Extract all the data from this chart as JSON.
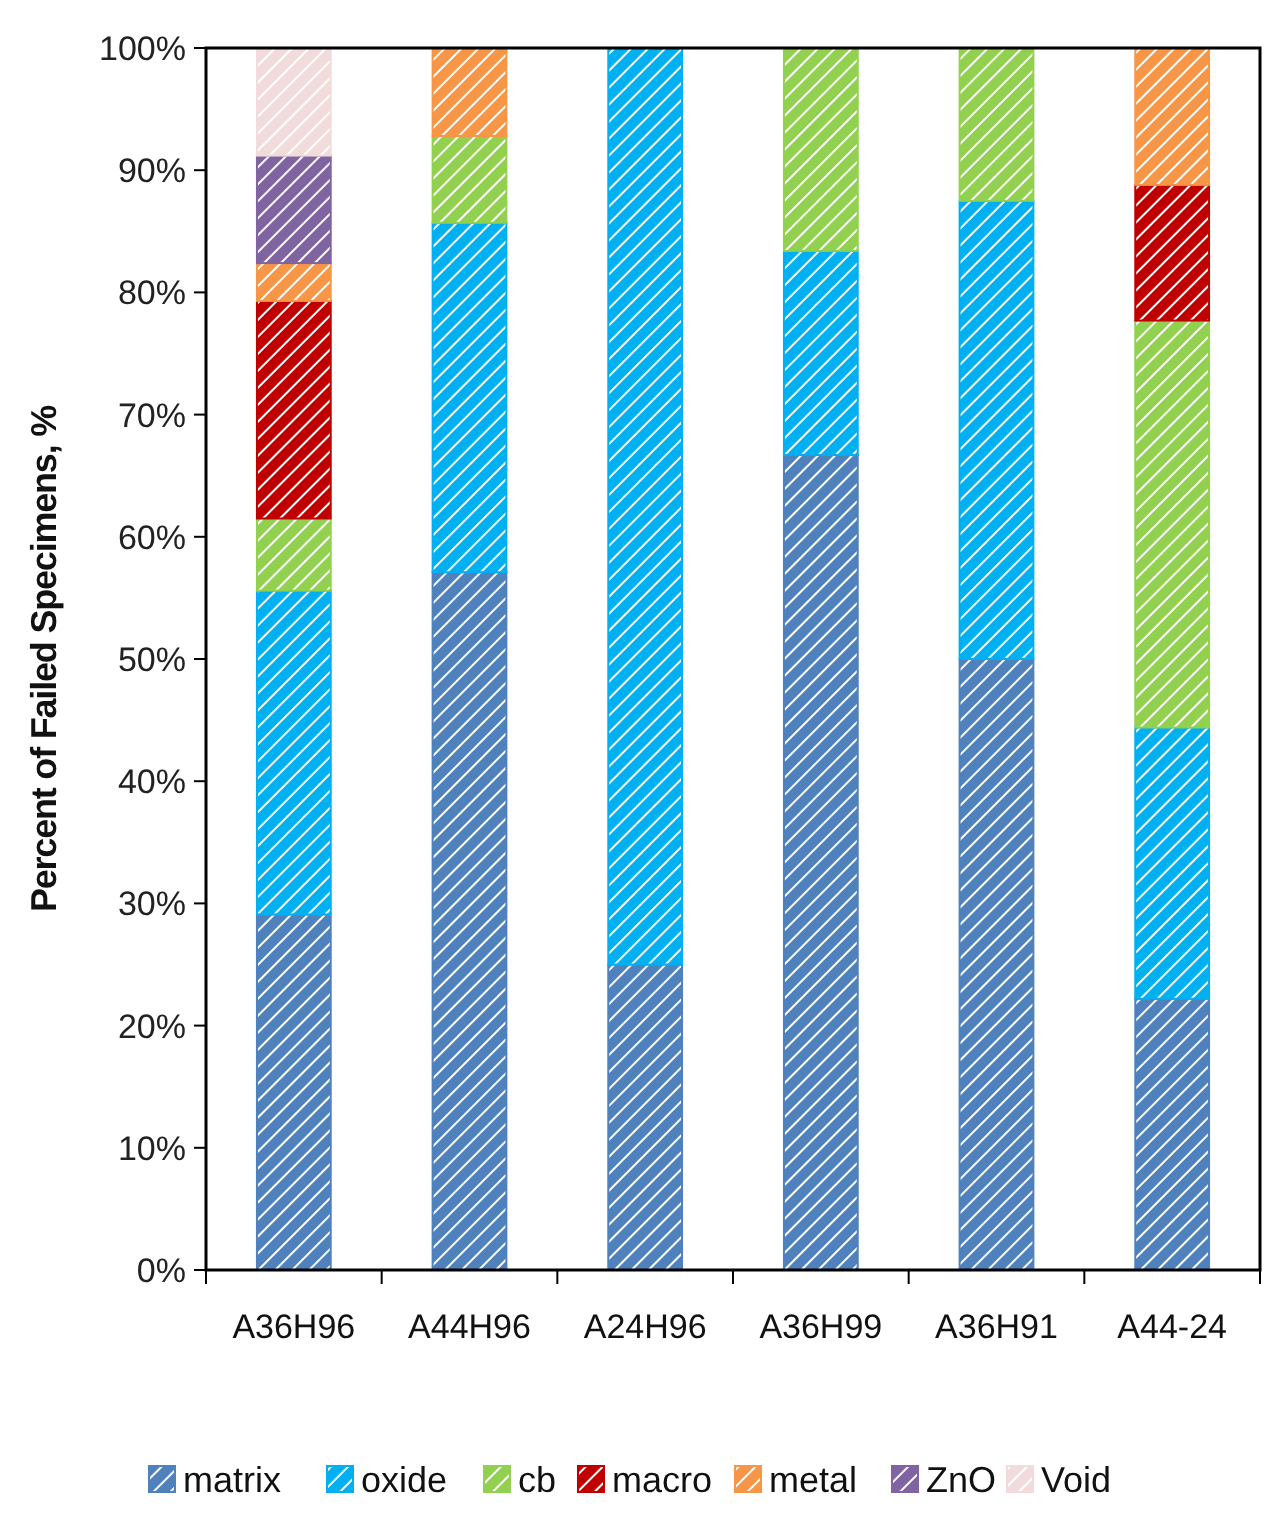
{
  "chart_data": {
    "type": "bar",
    "stacked": true,
    "ylabel": "Percent of Failed Specimens, %",
    "categories": [
      "A36H96",
      "A44H96",
      "A24H96",
      "A36H99",
      "A36H91",
      "A44-24"
    ],
    "series": [
      {
        "name": "matrix",
        "color": "#4f81bd",
        "values": [
          29.1,
          57.1,
          25,
          66.7,
          50,
          22.2
        ]
      },
      {
        "name": "oxide",
        "color": "#00b0f0",
        "values": [
          26.5,
          28.6,
          75,
          16.7,
          37.5,
          22.2
        ]
      },
      {
        "name": "cb",
        "color": "#92d050",
        "values": [
          5.9,
          7.1,
          null,
          16.6,
          12.5,
          33.3
        ]
      },
      {
        "name": "macro",
        "color": "#c00000",
        "values": [
          17.8,
          null,
          null,
          null,
          null,
          11.1
        ]
      },
      {
        "name": "metal",
        "color": "#f79646",
        "values": [
          3.1,
          7.2,
          null,
          null,
          null,
          11.2
        ]
      },
      {
        "name": "ZnO",
        "color": "#8064a2",
        "values": [
          8.8,
          null,
          null,
          null,
          null,
          null
        ]
      },
      {
        "name": "Void",
        "color": "#f2dcdb",
        "values": [
          8.8,
          null,
          null,
          null,
          null,
          null
        ]
      }
    ],
    "ylim": [
      0,
      100
    ],
    "yticks": [
      {
        "value": 0,
        "label": "0%"
      },
      {
        "value": 10,
        "label": "10%"
      },
      {
        "value": 20,
        "label": "20%"
      },
      {
        "value": 30,
        "label": "30%"
      },
      {
        "value": 40,
        "label": "40%"
      },
      {
        "value": 50,
        "label": "50%"
      },
      {
        "value": 60,
        "label": "60%"
      },
      {
        "value": 70,
        "label": "70%"
      },
      {
        "value": 80,
        "label": "80%"
      },
      {
        "value": 90,
        "label": "90%"
      },
      {
        "value": 100,
        "label": "100%"
      }
    ],
    "legend": "bottom"
  }
}
